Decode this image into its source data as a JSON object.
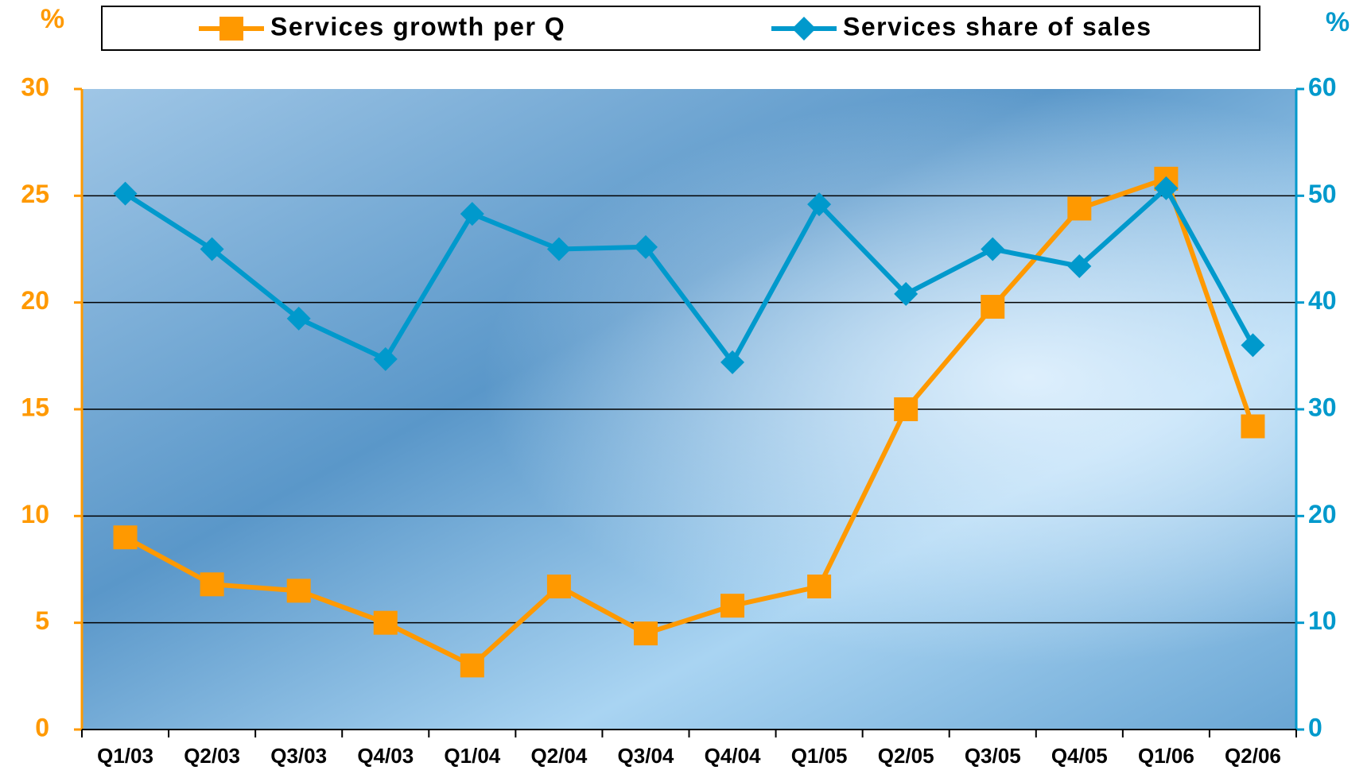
{
  "chart_data": {
    "type": "line",
    "ylabel": "%",
    "y2label": "%",
    "categories": [
      "Q1/03",
      "Q2/03",
      "Q3/03",
      "Q4/03",
      "Q1/04",
      "Q2/04",
      "Q3/04",
      "Q4/04",
      "Q1/05",
      "Q2/05",
      "Q3/05",
      "Q4/05",
      "Q1/06",
      "Q2/06"
    ],
    "series": [
      {
        "name": "Services growth per Q",
        "color": "#ff9900",
        "marker": "square",
        "values": [
          9,
          6.8,
          6.5,
          5,
          3,
          6.7,
          4.5,
          5.8,
          6.7,
          15,
          19.8,
          24.4,
          25.8,
          14.2
        ]
      },
      {
        "name": "Services share of sales",
        "color": "#0099cc",
        "marker": "diamond",
        "axis": "y2",
        "values": [
          50.2,
          45,
          38.5,
          34.7,
          48.3,
          45,
          45.2,
          34.4,
          49.2,
          40.8,
          45,
          43.4,
          50.7,
          36
        ]
      }
    ],
    "ylim": [
      0,
      30
    ],
    "yticks": [
      0,
      5,
      10,
      15,
      20,
      25,
      30
    ],
    "y2lim": [
      0,
      60
    ],
    "y2ticks": [
      0,
      10,
      20,
      30,
      40,
      50,
      60
    ],
    "grid": true,
    "legend": "top"
  }
}
